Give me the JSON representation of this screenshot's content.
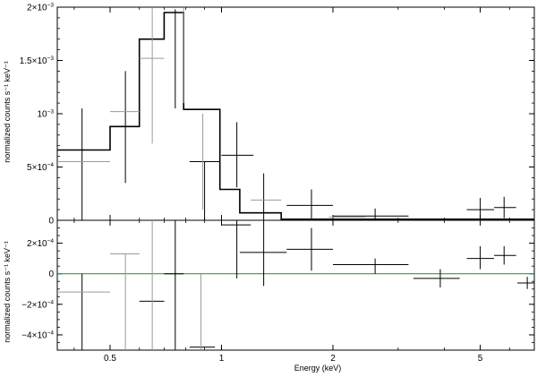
{
  "figure": {
    "xlabel": "Energy (keV)",
    "ylabel_top": "normalized counts s⁻¹ keV⁻¹",
    "ylabel_bottom": "normalized counts s⁻¹ keV⁻¹",
    "colors": {
      "black": "#000000",
      "gray": "#9a9a9a",
      "model": "#000000",
      "zero_line": "#22aa22"
    }
  },
  "chart_data": [
    {
      "panel": "top",
      "type": "scatter",
      "xscale": "log",
      "xlim": [
        0.36,
        7.0
      ],
      "ylim": [
        0,
        0.002
      ],
      "xticks": [
        {
          "v": 0.5,
          "label": "0.5"
        },
        {
          "v": 1,
          "label": "1"
        },
        {
          "v": 2,
          "label": "2"
        },
        {
          "v": 5,
          "label": "5"
        }
      ],
      "yticks": [
        {
          "v": 0,
          "mant": "0",
          "exp": ""
        },
        {
          "v": 0.0005,
          "mant": "5×10",
          "exp": "−4"
        },
        {
          "v": 0.001,
          "mant": "10",
          "exp": "−3"
        },
        {
          "v": 0.0015,
          "mant": "1.5×10",
          "exp": "−3"
        },
        {
          "v": 0.002,
          "mant": "2×10",
          "exp": "−3"
        }
      ],
      "series": [
        {
          "style": "black-data",
          "points": [
            {
              "x": 0.42,
              "xlo": 0.42,
              "xhi": 0.42,
              "y": 0.00055,
              "ylo": 0.0,
              "yhi": 0.00105
            },
            {
              "x": 0.55,
              "xlo": 0.55,
              "xhi": 0.55,
              "y": 0.00088,
              "ylo": 0.00035,
              "yhi": 0.0014
            },
            {
              "x": 0.75,
              "xlo": 0.75,
              "xhi": 0.75,
              "y": 0.00198,
              "ylo": 0.00105,
              "yhi": 0.00198
            },
            {
              "x": 0.9,
              "xlo": 0.82,
              "xhi": 0.99,
              "y": 0.00055,
              "ylo": 0.0,
              "yhi": 0.00055
            },
            {
              "x": 1.1,
              "xlo": 1.0,
              "xhi": 1.22,
              "y": 0.00061,
              "ylo": 0.00031,
              "yhi": 0.00092
            },
            {
              "x": 1.3,
              "xlo": 1.3,
              "xhi": 1.3,
              "y": 0.0002,
              "ylo": 0.0,
              "yhi": 0.00044
            },
            {
              "x": 1.75,
              "xlo": 1.5,
              "xhi": 2.0,
              "y": 0.00014,
              "ylo": 0.0,
              "yhi": 0.00029
            },
            {
              "x": 2.6,
              "xlo": 2.0,
              "xhi": 3.2,
              "y": 4e-05,
              "ylo": 0.0,
              "yhi": 0.00011
            },
            {
              "x": 5.0,
              "xlo": 4.6,
              "xhi": 5.45,
              "y": 0.0001,
              "ylo": 0.0,
              "yhi": 0.00021
            },
            {
              "x": 5.8,
              "xlo": 5.45,
              "xhi": 6.25,
              "y": 0.00012,
              "ylo": 2e-05,
              "yhi": 0.00022
            }
          ]
        },
        {
          "style": "gray-data",
          "points": [
            {
              "x": 0.42,
              "xlo": 0.36,
              "xhi": 0.5,
              "y": 0.00055,
              "ylo": 0.00055,
              "yhi": 0.00055
            },
            {
              "x": 0.55,
              "xlo": 0.5,
              "xhi": 0.6,
              "y": 0.00102,
              "ylo": 0.00102,
              "yhi": 0.00102
            },
            {
              "x": 0.65,
              "xlo": 0.6,
              "xhi": 0.7,
              "y": 0.00152,
              "ylo": 0.00072,
              "yhi": 0.002
            },
            {
              "x": 0.79,
              "xlo": 0.79,
              "xhi": 0.79,
              "y": 0.0014,
              "ylo": 0.0011,
              "yhi": 0.002
            },
            {
              "x": 0.89,
              "xlo": 0.89,
              "xhi": 0.89,
              "y": 0.0006,
              "ylo": 0.0001,
              "yhi": 0.001
            },
            {
              "x": 1.3,
              "xlo": 1.2,
              "xhi": 1.45,
              "y": 0.00019,
              "ylo": 0.00019,
              "yhi": 0.00019
            },
            {
              "x": 2.2,
              "xlo": 1.95,
              "xhi": 2.45,
              "y": 3e-05,
              "ylo": 3e-05,
              "yhi": 3e-05
            }
          ]
        }
      ],
      "model_step": {
        "edges": [
          0.36,
          0.5,
          0.6,
          0.7,
          0.79,
          0.99,
          1.12,
          1.45,
          7.0
        ],
        "values": [
          0.00066,
          0.00088,
          0.0017,
          0.00195,
          0.00104,
          0.00029,
          7e-05,
          1e-05
        ]
      }
    },
    {
      "panel": "bottom",
      "type": "scatter",
      "xscale": "log",
      "xlim": [
        0.36,
        7.0
      ],
      "ylim": [
        -0.0005,
        0.00035
      ],
      "xticks": [
        {
          "v": 0.5,
          "label": "0.5"
        },
        {
          "v": 1,
          "label": "1"
        },
        {
          "v": 2,
          "label": "2"
        },
        {
          "v": 5,
          "label": "5"
        }
      ],
      "yticks": [
        {
          "v": 0.0002,
          "mant": "2×10",
          "exp": "−4"
        },
        {
          "v": 0,
          "mant": "0",
          "exp": ""
        },
        {
          "v": -0.0002,
          "mant": "−2×10",
          "exp": "−4"
        },
        {
          "v": -0.0004,
          "mant": "−4×10",
          "exp": "−4"
        }
      ],
      "zero_line": 0,
      "series": [
        {
          "style": "black-residual",
          "points": [
            {
              "x": 0.42,
              "xlo": 0.42,
              "xhi": 0.42,
              "y": -0.0005,
              "ylo": -0.0005,
              "yhi": 0.0
            },
            {
              "x": 0.65,
              "xlo": 0.6,
              "xhi": 0.7,
              "y": -0.00018,
              "ylo": -0.00018,
              "yhi": -0.00018
            },
            {
              "x": 0.75,
              "xlo": 0.7,
              "xhi": 0.79,
              "y": 0.0,
              "ylo": -0.0005,
              "yhi": 0.00035
            },
            {
              "x": 0.89,
              "xlo": 0.82,
              "xhi": 0.96,
              "y": -0.00048,
              "ylo": -0.00048,
              "yhi": -0.00048
            },
            {
              "x": 1.1,
              "xlo": 1.0,
              "xhi": 1.2,
              "y": 0.00032,
              "ylo": -3e-05,
              "yhi": 0.00035
            },
            {
              "x": 1.3,
              "xlo": 1.12,
              "xhi": 1.5,
              "y": 0.00014,
              "ylo": -8e-05,
              "yhi": 0.00035
            },
            {
              "x": 1.75,
              "xlo": 1.5,
              "xhi": 2.0,
              "y": 0.00016,
              "ylo": 2e-05,
              "yhi": 0.0003
            },
            {
              "x": 2.6,
              "xlo": 2.0,
              "xhi": 3.2,
              "y": 6e-05,
              "ylo": 0.0,
              "yhi": 0.0001
            },
            {
              "x": 3.9,
              "xlo": 3.3,
              "xhi": 4.4,
              "y": -3e-05,
              "ylo": -9e-05,
              "yhi": 3e-05
            },
            {
              "x": 5.0,
              "xlo": 4.6,
              "xhi": 5.45,
              "y": 0.0001,
              "ylo": 3e-05,
              "yhi": 0.00018
            },
            {
              "x": 5.8,
              "xlo": 5.45,
              "xhi": 6.25,
              "y": 0.00012,
              "ylo": 6e-05,
              "yhi": 0.00018
            },
            {
              "x": 6.7,
              "xlo": 6.3,
              "xhi": 7.0,
              "y": -6e-05,
              "ylo": -0.0001,
              "yhi": -2e-05
            }
          ]
        },
        {
          "style": "gray-residual",
          "points": [
            {
              "x": 0.42,
              "xlo": 0.36,
              "xhi": 0.5,
              "y": -0.00012,
              "ylo": -0.00012,
              "yhi": -0.00012
            },
            {
              "x": 0.55,
              "xlo": 0.5,
              "xhi": 0.6,
              "y": 0.00013,
              "ylo": -0.0005,
              "yhi": 0.00013
            },
            {
              "x": 0.65,
              "xlo": 0.65,
              "xhi": 0.65,
              "y": 0.0,
              "ylo": -0.0005,
              "yhi": 0.00035
            },
            {
              "x": 0.88,
              "xlo": 0.88,
              "xhi": 0.88,
              "y": -0.0002,
              "ylo": -0.0005,
              "yhi": 0.0
            }
          ]
        }
      ]
    }
  ]
}
